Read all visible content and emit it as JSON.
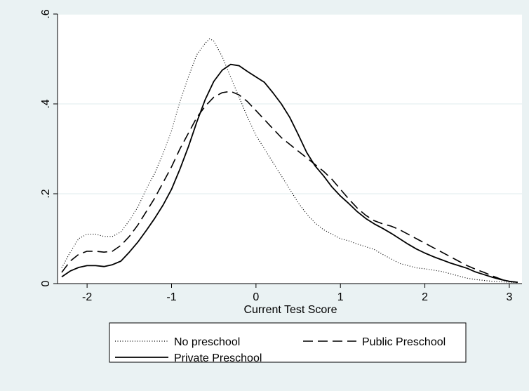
{
  "chart_data": {
    "type": "line",
    "title": "",
    "xlabel": "Current Test Score",
    "ylabel": "",
    "xlim": [
      -2.35,
      3.15
    ],
    "ylim": [
      0,
      0.6
    ],
    "x_ticks": [
      -2,
      -1,
      0,
      1,
      2,
      3
    ],
    "x_tick_labels": [
      "-2",
      "-1",
      "0",
      "1",
      "2",
      "3"
    ],
    "y_ticks": [
      0,
      0.2,
      0.4,
      0.6
    ],
    "y_tick_labels": [
      "0",
      ".2",
      ".4",
      ".6"
    ],
    "grid": "horizontal",
    "legend_position": "bottom",
    "series": [
      {
        "name": "No preschool",
        "style": "dotted",
        "x": [
          -2.3,
          -2.2,
          -2.1,
          -2.0,
          -1.9,
          -1.8,
          -1.7,
          -1.6,
          -1.5,
          -1.4,
          -1.3,
          -1.2,
          -1.1,
          -1.0,
          -0.9,
          -0.8,
          -0.7,
          -0.6,
          -0.55,
          -0.5,
          -0.4,
          -0.3,
          -0.2,
          -0.1,
          0.0,
          0.1,
          0.2,
          0.3,
          0.4,
          0.5,
          0.6,
          0.7,
          0.8,
          0.9,
          1.0,
          1.1,
          1.2,
          1.3,
          1.4,
          1.5,
          1.6,
          1.7,
          1.8,
          1.9,
          2.0,
          2.1,
          2.2,
          2.3,
          2.4,
          2.5,
          2.6,
          2.7,
          2.8,
          2.9,
          3.0,
          3.1
        ],
        "values": [
          0.035,
          0.07,
          0.1,
          0.11,
          0.11,
          0.105,
          0.105,
          0.115,
          0.14,
          0.17,
          0.21,
          0.245,
          0.29,
          0.34,
          0.405,
          0.46,
          0.51,
          0.535,
          0.545,
          0.54,
          0.505,
          0.46,
          0.415,
          0.37,
          0.33,
          0.3,
          0.27,
          0.24,
          0.21,
          0.18,
          0.155,
          0.135,
          0.12,
          0.11,
          0.1,
          0.095,
          0.088,
          0.082,
          0.076,
          0.065,
          0.055,
          0.045,
          0.04,
          0.035,
          0.033,
          0.03,
          0.027,
          0.022,
          0.017,
          0.012,
          0.009,
          0.007,
          0.005,
          0.004,
          0.003,
          0.002
        ]
      },
      {
        "name": "Public Preschool",
        "style": "dashed",
        "x": [
          -2.3,
          -2.2,
          -2.1,
          -2.0,
          -1.9,
          -1.8,
          -1.7,
          -1.6,
          -1.5,
          -1.4,
          -1.3,
          -1.2,
          -1.1,
          -1.0,
          -0.9,
          -0.8,
          -0.7,
          -0.6,
          -0.5,
          -0.4,
          -0.3,
          -0.2,
          -0.1,
          0.0,
          0.1,
          0.2,
          0.3,
          0.4,
          0.5,
          0.6,
          0.7,
          0.8,
          0.9,
          1.0,
          1.1,
          1.2,
          1.3,
          1.4,
          1.5,
          1.6,
          1.7,
          1.8,
          1.9,
          2.0,
          2.1,
          2.2,
          2.3,
          2.4,
          2.5,
          2.6,
          2.7,
          2.8,
          2.9,
          3.0,
          3.1
        ],
        "values": [
          0.025,
          0.05,
          0.065,
          0.072,
          0.072,
          0.07,
          0.072,
          0.085,
          0.105,
          0.13,
          0.16,
          0.19,
          0.225,
          0.26,
          0.3,
          0.335,
          0.37,
          0.395,
          0.415,
          0.425,
          0.428,
          0.42,
          0.405,
          0.385,
          0.365,
          0.345,
          0.325,
          0.31,
          0.295,
          0.28,
          0.265,
          0.25,
          0.232,
          0.21,
          0.188,
          0.168,
          0.152,
          0.14,
          0.133,
          0.128,
          0.12,
          0.11,
          0.1,
          0.09,
          0.08,
          0.07,
          0.06,
          0.05,
          0.04,
          0.032,
          0.025,
          0.017,
          0.01,
          0.005,
          0.003
        ]
      },
      {
        "name": "Private Preschool",
        "style": "solid",
        "x": [
          -2.3,
          -2.2,
          -2.1,
          -2.0,
          -1.9,
          -1.8,
          -1.7,
          -1.6,
          -1.5,
          -1.4,
          -1.3,
          -1.2,
          -1.1,
          -1.0,
          -0.9,
          -0.8,
          -0.7,
          -0.6,
          -0.5,
          -0.4,
          -0.3,
          -0.2,
          -0.1,
          0.0,
          0.1,
          0.2,
          0.3,
          0.4,
          0.5,
          0.6,
          0.7,
          0.8,
          0.9,
          1.0,
          1.1,
          1.2,
          1.3,
          1.4,
          1.5,
          1.6,
          1.7,
          1.8,
          1.9,
          2.0,
          2.1,
          2.2,
          2.3,
          2.4,
          2.5,
          2.6,
          2.7,
          2.8,
          2.9,
          3.0,
          3.1
        ],
        "values": [
          0.015,
          0.028,
          0.036,
          0.04,
          0.04,
          0.038,
          0.042,
          0.05,
          0.07,
          0.092,
          0.118,
          0.145,
          0.175,
          0.21,
          0.255,
          0.305,
          0.36,
          0.41,
          0.45,
          0.475,
          0.488,
          0.485,
          0.472,
          0.46,
          0.448,
          0.425,
          0.4,
          0.37,
          0.332,
          0.292,
          0.262,
          0.24,
          0.215,
          0.195,
          0.178,
          0.16,
          0.145,
          0.133,
          0.123,
          0.112,
          0.1,
          0.088,
          0.077,
          0.068,
          0.06,
          0.053,
          0.046,
          0.04,
          0.034,
          0.026,
          0.02,
          0.014,
          0.009,
          0.005,
          0.003
        ]
      }
    ]
  }
}
